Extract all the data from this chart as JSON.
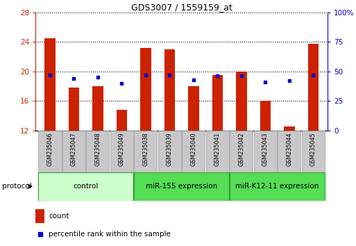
{
  "title": "GDS3007 / 1559159_at",
  "samples": [
    "GSM235046",
    "GSM235047",
    "GSM235048",
    "GSM235049",
    "GSM235038",
    "GSM235039",
    "GSM235040",
    "GSM235041",
    "GSM235042",
    "GSM235043",
    "GSM235044",
    "GSM235045"
  ],
  "count_values": [
    24.5,
    17.8,
    18.0,
    14.8,
    23.2,
    23.0,
    18.0,
    19.5,
    20.0,
    16.0,
    12.5,
    23.7
  ],
  "percentile_values": [
    47,
    44,
    45,
    40,
    47,
    47,
    43,
    46,
    46,
    41,
    42,
    47
  ],
  "y_min": 12,
  "y_max": 28,
  "y_ticks": [
    12,
    16,
    20,
    24,
    28
  ],
  "y2_ticks": [
    0,
    25,
    50,
    75,
    100
  ],
  "bar_color": "#cc2200",
  "dot_color": "#0000cc",
  "groups": [
    {
      "label": "control",
      "start": 0,
      "end": 3,
      "color": "#ccffcc"
    },
    {
      "label": "miR-155 expression",
      "start": 4,
      "end": 7,
      "color": "#55dd55"
    },
    {
      "label": "miR-K12-11 expression",
      "start": 8,
      "end": 11,
      "color": "#55dd55"
    }
  ],
  "protocol_label": "protocol",
  "legend_count_label": "count",
  "legend_pct_label": "percentile rank within the sample",
  "sample_box_color": "#c8c8c8",
  "sample_box_edge": "#999999"
}
